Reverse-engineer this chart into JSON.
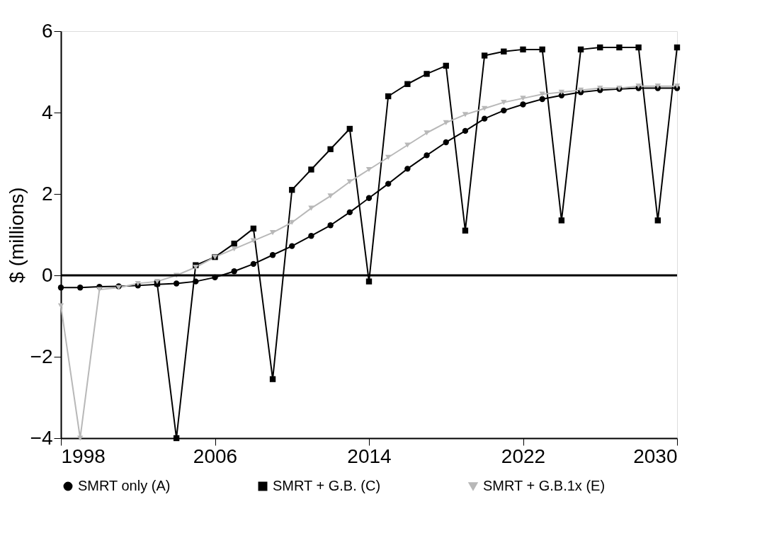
{
  "chart_data": {
    "type": "line",
    "ylabel": "$ (millions)",
    "x": [
      1998,
      1999,
      2000,
      2001,
      2002,
      2003,
      2004,
      2005,
      2006,
      2007,
      2008,
      2009,
      2010,
      2011,
      2012,
      2013,
      2014,
      2015,
      2016,
      2017,
      2018,
      2019,
      2020,
      2021,
      2022,
      2023,
      2024,
      2025,
      2026,
      2027,
      2028,
      2029,
      2030
    ],
    "series": [
      {
        "name": "SMRT only (A)",
        "color": "#000000",
        "marker": "circle",
        "values": [
          -0.3,
          -0.3,
          -0.28,
          -0.27,
          -0.25,
          -0.22,
          -0.2,
          -0.15,
          -0.05,
          0.1,
          0.28,
          0.5,
          0.72,
          0.97,
          1.23,
          1.55,
          1.9,
          2.25,
          2.62,
          2.95,
          3.27,
          3.55,
          3.85,
          4.05,
          4.2,
          4.33,
          4.42,
          4.5,
          4.55,
          4.58,
          4.6,
          4.6,
          4.6
        ]
      },
      {
        "name": "SMRT + G.B. (C)",
        "color": "#000000",
        "marker": "square",
        "values": [
          null,
          null,
          null,
          null,
          null,
          -0.2,
          -4,
          0.25,
          0.45,
          0.78,
          1.15,
          -2.55,
          2.1,
          2.6,
          3.1,
          3.6,
          -0.15,
          4.4,
          4.7,
          4.95,
          5.15,
          1.1,
          5.4,
          5.5,
          5.55,
          5.55,
          1.35,
          5.55,
          5.6,
          5.6,
          5.6,
          1.35,
          5.6
        ]
      },
      {
        "name": "SMRT + G.B.1x (E)",
        "color": "#b8b8b8",
        "marker": "triangle",
        "values": [
          -0.75,
          -4,
          -0.35,
          -0.3,
          -0.2,
          -0.15,
          0.0,
          0.2,
          0.45,
          0.65,
          0.85,
          1.05,
          1.3,
          1.65,
          1.95,
          2.3,
          2.6,
          2.9,
          3.2,
          3.5,
          3.75,
          3.95,
          4.1,
          4.25,
          4.35,
          4.45,
          4.5,
          4.55,
          4.6,
          4.6,
          4.65,
          4.65,
          4.65
        ]
      }
    ],
    "xlim": [
      1998,
      2030
    ],
    "xticks": [
      1998,
      2006,
      2014,
      2022,
      2030
    ],
    "ylim": [
      -4,
      6
    ],
    "yticks": [
      -4,
      -2,
      0,
      2,
      4,
      6
    ],
    "ref_lines": [
      {
        "axis": "y",
        "value": 0,
        "color": "#000000"
      }
    ],
    "grid": false,
    "legend": "bottom",
    "line_style": "solid"
  }
}
